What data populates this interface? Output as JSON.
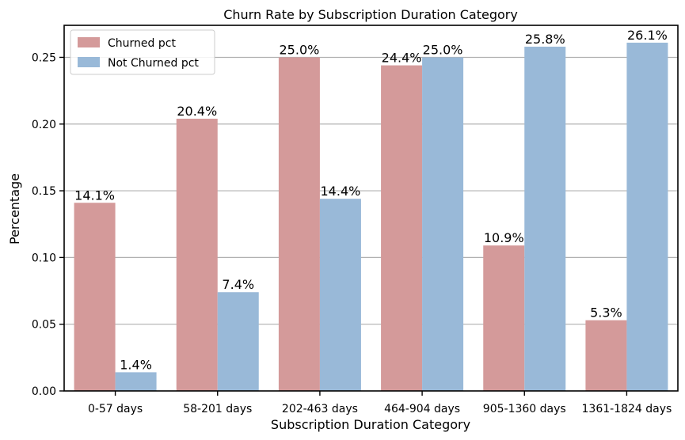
{
  "chart_data": {
    "type": "bar",
    "title": "Churn Rate by Subscription Duration Category",
    "xlabel": "Subscription Duration Category",
    "ylabel": "Percentage",
    "categories": [
      "0-57 days",
      "58-201 days",
      "202-463 days",
      "464-904 days",
      "905-1360 days",
      "1361-1824 days"
    ],
    "series": [
      {
        "name": "Churned pct",
        "color": "#d49a9a",
        "values": [
          0.141,
          0.204,
          0.25,
          0.244,
          0.109,
          0.053
        ],
        "labels": [
          "14.1%",
          "20.4%",
          "25.0%",
          "24.4%",
          "10.9%",
          "5.3%"
        ]
      },
      {
        "name": "Not Churned pct",
        "color": "#99b9d8",
        "values": [
          0.014,
          0.074,
          0.144,
          0.25,
          0.258,
          0.261
        ],
        "labels": [
          "1.4%",
          "7.4%",
          "14.4%",
          "25.0%",
          "25.8%",
          "26.1%"
        ]
      }
    ],
    "ylim": [
      0,
      0.274
    ],
    "yticks": [
      0.0,
      0.05,
      0.1,
      0.15,
      0.2,
      0.25
    ],
    "ytick_labels": [
      "0.00",
      "0.05",
      "0.10",
      "0.15",
      "0.20",
      "0.25"
    ],
    "grid": "horizontal",
    "legend_position": "top-left"
  }
}
